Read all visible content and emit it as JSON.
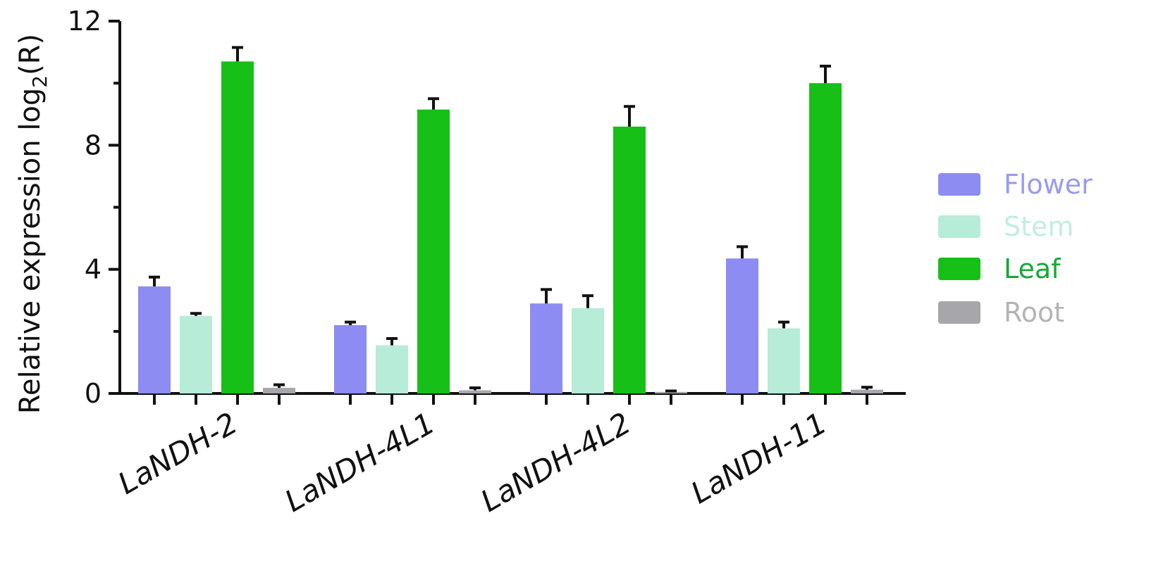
{
  "chart_data": {
    "type": "bar",
    "categories": [
      "LaNDH-2",
      "LaNDH-4L1",
      "LaNDH-4L2",
      "LaNDH-11"
    ],
    "series": [
      {
        "name": "Flower",
        "color": "#8c8cf2",
        "values": [
          3.45,
          2.2,
          2.9,
          4.35
        ],
        "errors": [
          0.3,
          0.1,
          0.45,
          0.38
        ]
      },
      {
        "name": "Stem",
        "color": "#b7ecd9",
        "values": [
          2.5,
          1.55,
          2.75,
          2.1
        ],
        "errors": [
          0.08,
          0.22,
          0.4,
          0.2
        ]
      },
      {
        "name": "Leaf",
        "color": "#16c016",
        "values": [
          10.7,
          9.15,
          8.6,
          10.0
        ],
        "errors": [
          0.45,
          0.35,
          0.65,
          0.55
        ]
      },
      {
        "name": "Root",
        "color": "#a7a7ab",
        "values": [
          0.18,
          0.1,
          0.05,
          0.12
        ],
        "errors": [
          0.1,
          0.08,
          0.03,
          0.08
        ]
      }
    ],
    "ylabel_main": "Relative expression log",
    "ylabel_sub": "2",
    "ylabel_tail": "(R)",
    "ylim": [
      0,
      12
    ],
    "yticks": [
      0,
      4,
      8,
      12
    ],
    "legend_position": "right",
    "grid": false
  },
  "legend_text_colors": {
    "Flower": "#9a9af2",
    "Stem": "#c2eee2",
    "Leaf": "#16a83a",
    "Root": "#b4b4b4"
  }
}
